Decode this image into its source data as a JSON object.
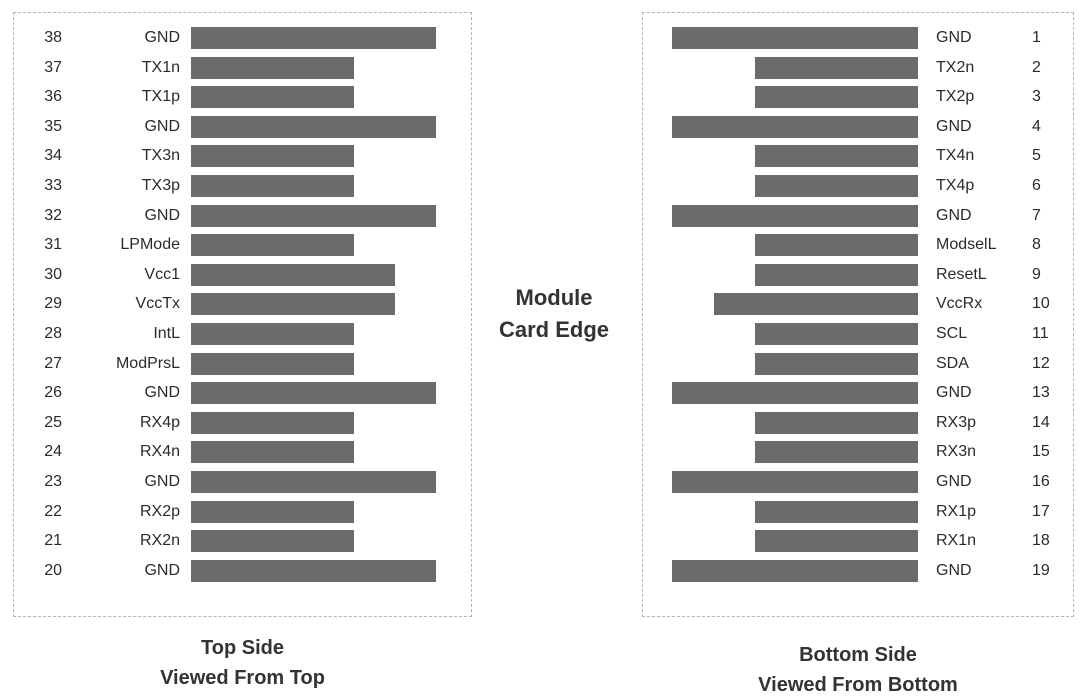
{
  "center_label": {
    "line1": "Module",
    "line2": "Card Edge"
  },
  "top_side": {
    "caption_line1": "Top Side",
    "caption_line2": "Viewed From Top",
    "pins": [
      {
        "number": "38",
        "name": "GND",
        "length": "long"
      },
      {
        "number": "37",
        "name": "TX1n",
        "length": "short"
      },
      {
        "number": "36",
        "name": "TX1p",
        "length": "short"
      },
      {
        "number": "35",
        "name": "GND",
        "length": "long"
      },
      {
        "number": "34",
        "name": "TX3n",
        "length": "short"
      },
      {
        "number": "33",
        "name": "TX3p",
        "length": "short"
      },
      {
        "number": "32",
        "name": "GND",
        "length": "long"
      },
      {
        "number": "31",
        "name": "LPMode",
        "length": "short"
      },
      {
        "number": "30",
        "name": "Vcc1",
        "length": "medium"
      },
      {
        "number": "29",
        "name": "VccTx",
        "length": "medium"
      },
      {
        "number": "28",
        "name": "IntL",
        "length": "short"
      },
      {
        "number": "27",
        "name": "ModPrsL",
        "length": "short"
      },
      {
        "number": "26",
        "name": "GND",
        "length": "long"
      },
      {
        "number": "25",
        "name": "RX4p",
        "length": "short"
      },
      {
        "number": "24",
        "name": "RX4n",
        "length": "short"
      },
      {
        "number": "23",
        "name": "GND",
        "length": "long"
      },
      {
        "number": "22",
        "name": "RX2p",
        "length": "short"
      },
      {
        "number": "21",
        "name": "RX2n",
        "length": "short"
      },
      {
        "number": "20",
        "name": "GND",
        "length": "long"
      }
    ]
  },
  "bottom_side": {
    "caption_line1": "Bottom Side",
    "caption_line2": "Viewed From Bottom",
    "pins": [
      {
        "number": "1",
        "name": "GND",
        "length": "long"
      },
      {
        "number": "2",
        "name": "TX2n",
        "length": "short"
      },
      {
        "number": "3",
        "name": "TX2p",
        "length": "short"
      },
      {
        "number": "4",
        "name": "GND",
        "length": "long"
      },
      {
        "number": "5",
        "name": "TX4n",
        "length": "short"
      },
      {
        "number": "6",
        "name": "TX4p",
        "length": "short"
      },
      {
        "number": "7",
        "name": "GND",
        "length": "long"
      },
      {
        "number": "8",
        "name": "ModselL",
        "length": "short"
      },
      {
        "number": "9",
        "name": "ResetL",
        "length": "short"
      },
      {
        "number": "10",
        "name": "VccRx",
        "length": "medium"
      },
      {
        "number": "11",
        "name": "SCL",
        "length": "short"
      },
      {
        "number": "12",
        "name": "SDA",
        "length": "short"
      },
      {
        "number": "13",
        "name": "GND",
        "length": "long"
      },
      {
        "number": "14",
        "name": "RX3p",
        "length": "short"
      },
      {
        "number": "15",
        "name": "RX3n",
        "length": "short"
      },
      {
        "number": "16",
        "name": "GND",
        "length": "long"
      },
      {
        "number": "17",
        "name": "RX1p",
        "length": "short"
      },
      {
        "number": "18",
        "name": "RX1n",
        "length": "short"
      },
      {
        "number": "19",
        "name": "GND",
        "length": "long"
      }
    ]
  },
  "colors": {
    "pad": "#6b6b6b",
    "text": "#2b2b2b",
    "border": "#b5b5b5"
  }
}
